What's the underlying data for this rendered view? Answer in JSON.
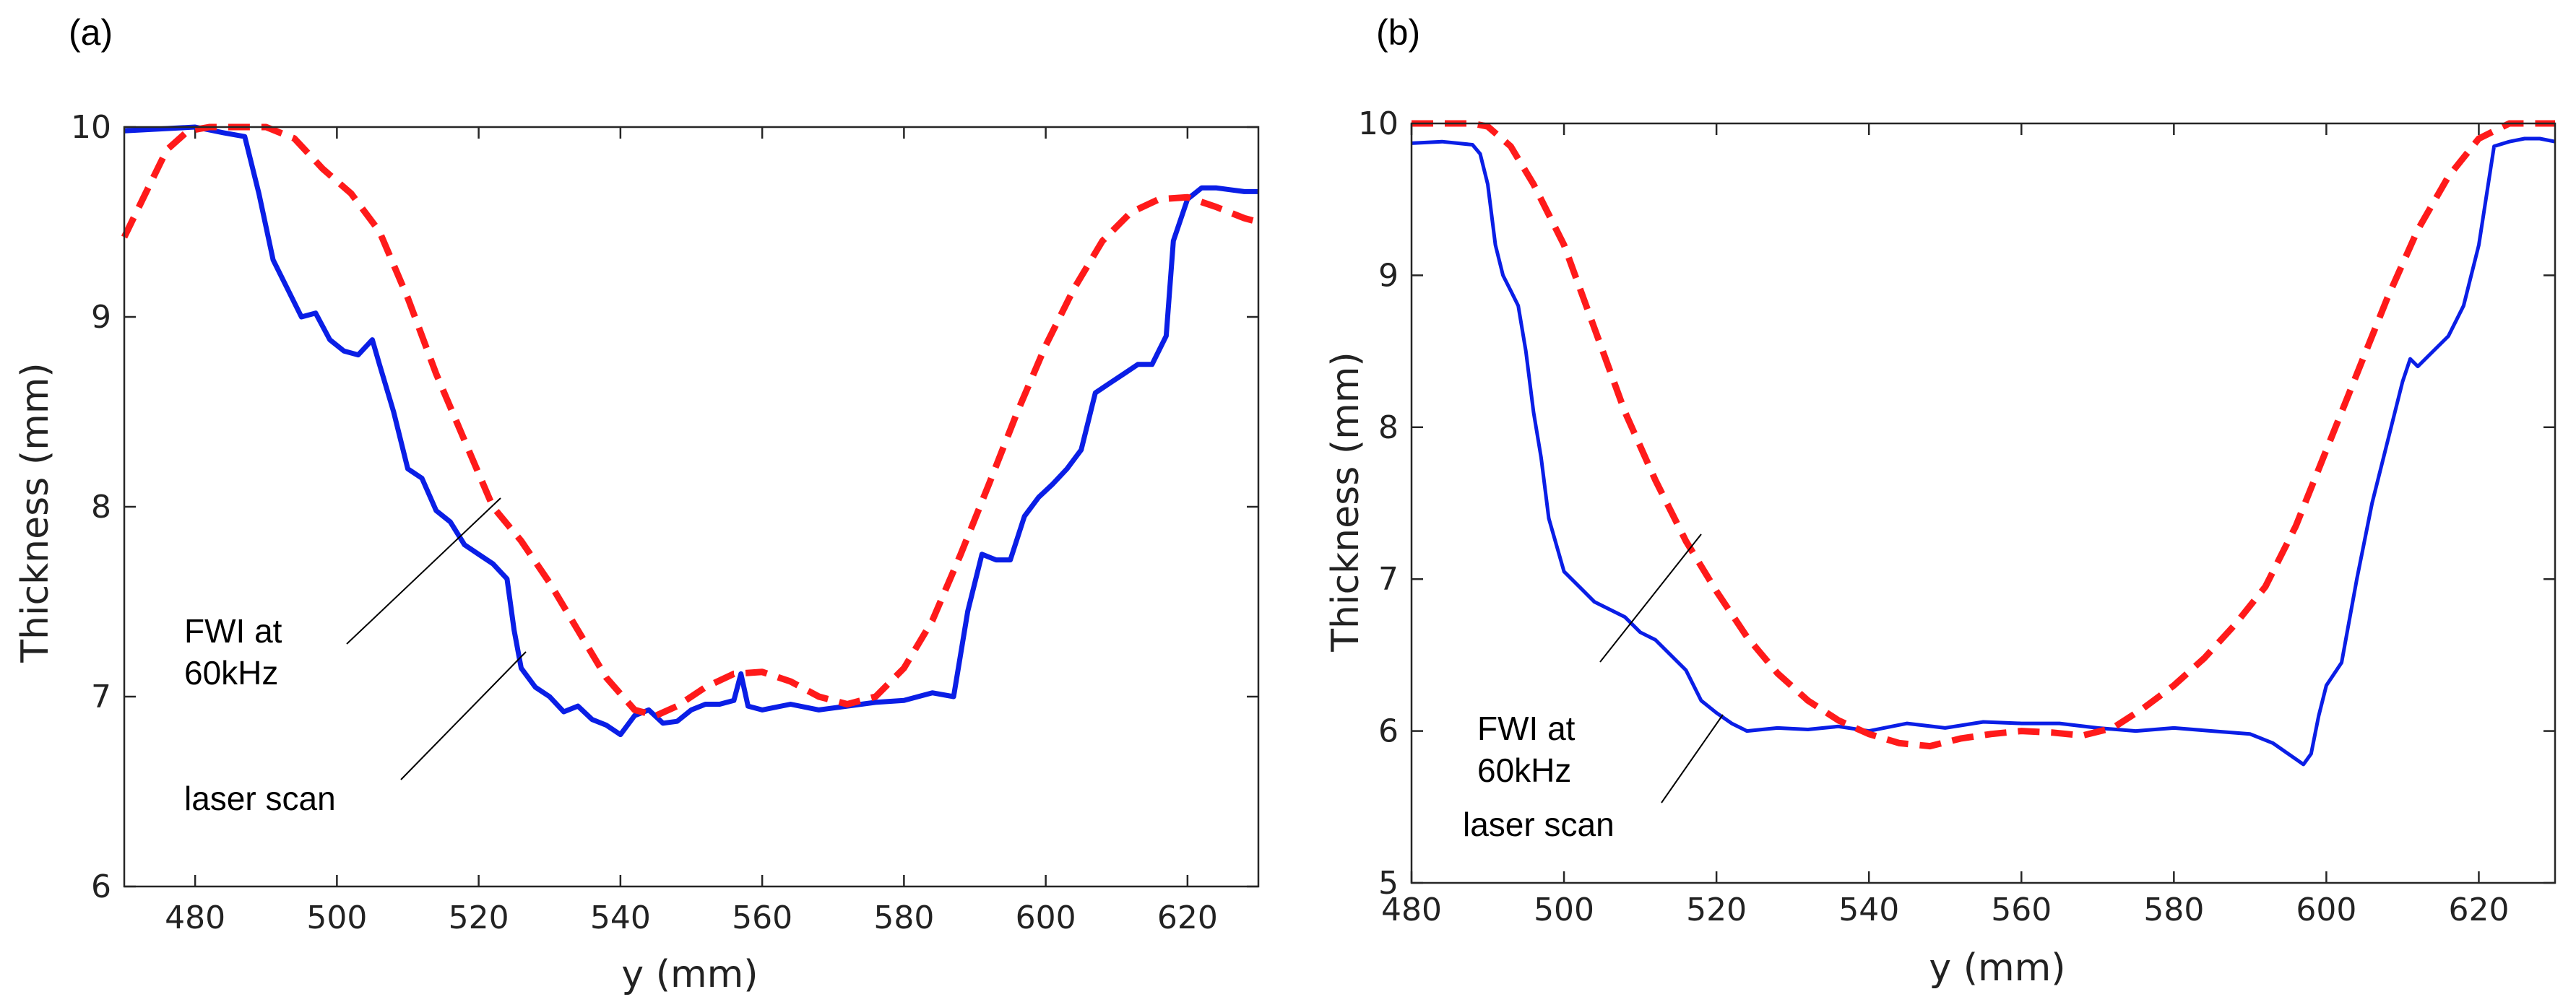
{
  "chart_data": [
    {
      "type": "line",
      "panel_label": "(a)",
      "xlabel": "y (mm)",
      "ylabel": "Thickness (mm)",
      "xlim": [
        470,
        630
      ],
      "ylim": [
        6,
        10
      ],
      "xticks": [
        480,
        500,
        520,
        540,
        560,
        580,
        600,
        620
      ],
      "yticks": [
        6,
        7,
        8,
        9,
        10
      ],
      "grid": false,
      "series": [
        {
          "name": "laser scan",
          "color": "#0a1ee6",
          "style": "solid",
          "x": [
            470,
            480,
            484,
            487,
            489,
            491,
            493,
            495,
            497,
            499,
            501,
            503,
            505,
            506,
            508,
            510,
            512,
            514,
            516,
            518,
            520,
            522,
            524,
            525,
            526,
            528,
            530,
            532,
            534,
            536,
            538,
            540,
            542,
            544,
            546,
            548,
            550,
            552,
            554,
            556,
            557,
            558,
            560,
            564,
            568,
            572,
            576,
            580,
            584,
            587,
            589,
            591,
            593,
            595,
            597,
            599,
            601,
            603,
            605,
            607,
            609,
            611,
            613,
            615,
            617,
            618,
            620,
            622,
            624,
            626,
            628,
            630
          ],
          "y": [
            9.98,
            10.0,
            9.97,
            9.95,
            9.65,
            9.3,
            9.15,
            9.0,
            9.02,
            8.88,
            8.82,
            8.8,
            8.88,
            8.75,
            8.5,
            8.2,
            8.15,
            7.98,
            7.92,
            7.8,
            7.75,
            7.7,
            7.62,
            7.35,
            7.15,
            7.05,
            7.0,
            6.92,
            6.95,
            6.88,
            6.85,
            6.8,
            6.9,
            6.93,
            6.86,
            6.87,
            6.93,
            6.96,
            6.96,
            6.98,
            7.12,
            6.95,
            6.93,
            6.96,
            6.93,
            6.95,
            6.97,
            6.98,
            7.02,
            7.0,
            7.45,
            7.75,
            7.72,
            7.72,
            7.95,
            8.05,
            8.12,
            8.2,
            8.3,
            8.6,
            8.65,
            8.7,
            8.75,
            8.75,
            8.9,
            9.4,
            9.62,
            9.68,
            9.68,
            9.67,
            9.66,
            9.66
          ]
        },
        {
          "name": "FWI at 60kHz",
          "color": "#ff1a1a",
          "style": "dashed",
          "x": [
            470,
            473,
            476,
            479,
            482,
            486,
            490,
            494,
            498,
            502,
            506,
            510,
            514,
            518,
            522,
            526,
            530,
            534,
            538,
            542,
            545,
            548,
            552,
            556,
            560,
            564,
            568,
            572,
            576,
            580,
            584,
            588,
            592,
            596,
            600,
            604,
            608,
            612,
            616,
            620,
            624,
            628,
            630
          ],
          "y": [
            9.42,
            9.65,
            9.88,
            9.98,
            10.0,
            10.0,
            10.0,
            9.94,
            9.78,
            9.65,
            9.45,
            9.1,
            8.7,
            8.35,
            8.0,
            7.82,
            7.6,
            7.35,
            7.1,
            6.93,
            6.9,
            6.95,
            7.05,
            7.12,
            7.13,
            7.08,
            7.0,
            6.96,
            7.0,
            7.15,
            7.4,
            7.75,
            8.12,
            8.5,
            8.85,
            9.15,
            9.4,
            9.55,
            9.62,
            9.63,
            9.58,
            9.52,
            9.5
          ]
        }
      ],
      "annotations": [
        {
          "lines": [
            "FWI at",
            "60kHz"
          ],
          "target": "FWI at 60kHz"
        },
        {
          "lines": [
            "laser scan"
          ],
          "target": "laser scan"
        }
      ]
    },
    {
      "type": "line",
      "panel_label": "(b)",
      "xlabel": "y (mm)",
      "ylabel": "Thickness (mm)",
      "xlim": [
        480,
        630
      ],
      "ylim": [
        5,
        10
      ],
      "xticks": [
        480,
        500,
        520,
        540,
        560,
        580,
        600,
        620
      ],
      "yticks": [
        5,
        6,
        7,
        8,
        9,
        10
      ],
      "grid": false,
      "series": [
        {
          "name": "laser scan",
          "color": "#0a1ee6",
          "style": "solid",
          "x": [
            480,
            484,
            488,
            489,
            490,
            491,
            492,
            493,
            494,
            495,
            496,
            497,
            498,
            500,
            502,
            504,
            506,
            508,
            510,
            512,
            514,
            516,
            518,
            520,
            522,
            524,
            528,
            532,
            536,
            540,
            545,
            550,
            555,
            560,
            565,
            570,
            575,
            580,
            585,
            590,
            593,
            595,
            597,
            598,
            599,
            600,
            602,
            604,
            606,
            608,
            610,
            611,
            612,
            614,
            616,
            618,
            620,
            622,
            624,
            626,
            628,
            630
          ],
          "y": [
            9.87,
            9.88,
            9.86,
            9.8,
            9.6,
            9.2,
            9.0,
            8.9,
            8.8,
            8.5,
            8.1,
            7.8,
            7.4,
            7.05,
            6.95,
            6.85,
            6.8,
            6.75,
            6.65,
            6.6,
            6.5,
            6.4,
            6.2,
            6.12,
            6.05,
            6.0,
            6.02,
            6.01,
            6.03,
            6.0,
            6.05,
            6.02,
            6.06,
            6.05,
            6.05,
            6.02,
            6.0,
            6.02,
            6.0,
            5.98,
            5.92,
            5.85,
            5.78,
            5.85,
            6.1,
            6.3,
            6.45,
            7.0,
            7.5,
            7.9,
            8.3,
            8.45,
            8.4,
            8.5,
            8.6,
            8.8,
            9.2,
            9.85,
            9.88,
            9.9,
            9.9,
            9.88
          ]
        },
        {
          "name": "FWI at 60kHz",
          "color": "#ff1a1a",
          "style": "dashed",
          "x": [
            480,
            484,
            488,
            490,
            493,
            496,
            500,
            504,
            508,
            512,
            516,
            520,
            524,
            528,
            532,
            536,
            540,
            544,
            548,
            552,
            556,
            560,
            564,
            568,
            572,
            576,
            580,
            584,
            588,
            592,
            596,
            600,
            604,
            608,
            612,
            616,
            620,
            624,
            628,
            630
          ],
          "y": [
            10.0,
            10.0,
            10.0,
            9.98,
            9.85,
            9.6,
            9.2,
            8.65,
            8.1,
            7.65,
            7.25,
            6.92,
            6.62,
            6.38,
            6.2,
            6.07,
            5.98,
            5.92,
            5.9,
            5.95,
            5.98,
            6.0,
            5.99,
            5.97,
            6.02,
            6.15,
            6.3,
            6.48,
            6.7,
            6.95,
            7.35,
            7.85,
            8.35,
            8.85,
            9.3,
            9.65,
            9.9,
            10.0,
            10.0,
            10.0
          ]
        }
      ],
      "annotations": [
        {
          "lines": [
            "FWI at",
            "60kHz"
          ],
          "target": "FWI at 60kHz"
        },
        {
          "lines": [
            "laser scan"
          ],
          "target": "laser scan"
        }
      ]
    }
  ]
}
